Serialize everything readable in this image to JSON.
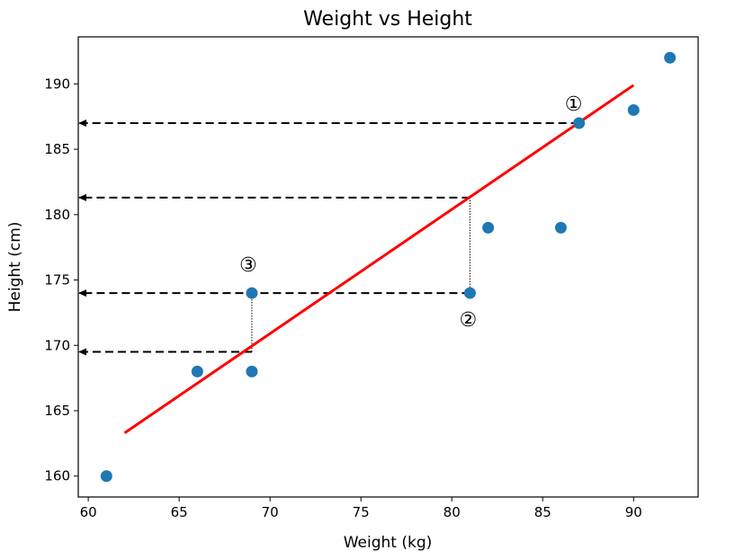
{
  "chart_data": {
    "type": "scatter",
    "title": "Weight vs Height",
    "xlabel": "Weight (kg)",
    "ylabel": "Height (cm)",
    "xlim": [
      59.45,
      93.55
    ],
    "ylim": [
      158.4,
      193.6
    ],
    "xticks": [
      60,
      65,
      70,
      75,
      80,
      85,
      90
    ],
    "yticks": [
      160,
      165,
      170,
      175,
      180,
      185,
      190
    ],
    "grid": false,
    "colors": {
      "points": "#1f77b4",
      "fit_line": "#ff0000",
      "arrows": "#000000"
    },
    "points": [
      {
        "x": 61,
        "y": 160
      },
      {
        "x": 66,
        "y": 168
      },
      {
        "x": 69,
        "y": 168
      },
      {
        "x": 69,
        "y": 174
      },
      {
        "x": 81,
        "y": 174
      },
      {
        "x": 82,
        "y": 179
      },
      {
        "x": 86,
        "y": 179
      },
      {
        "x": 87,
        "y": 187
      },
      {
        "x": 90,
        "y": 188
      },
      {
        "x": 92,
        "y": 192
      }
    ],
    "fit_line": {
      "x": [
        62,
        90
      ],
      "y": [
        163.3,
        189.9
      ]
    },
    "arrows": [
      {
        "from_x": 87,
        "y": 187
      },
      {
        "from_x": 81,
        "y": 181.3
      },
      {
        "from_x": 81,
        "y": 174
      },
      {
        "from_x": 69,
        "y": 169.5
      }
    ],
    "residual_lines": [
      {
        "x": 81,
        "y1": 174,
        "y2": 181.3
      },
      {
        "x": 69,
        "y1": 169.5,
        "y2": 174
      }
    ],
    "annotations": [
      {
        "text": "①",
        "x": 86.7,
        "y": 188.5
      },
      {
        "text": "②",
        "x": 80.9,
        "y": 172.0
      },
      {
        "text": "③",
        "x": 68.8,
        "y": 176.2
      }
    ]
  }
}
